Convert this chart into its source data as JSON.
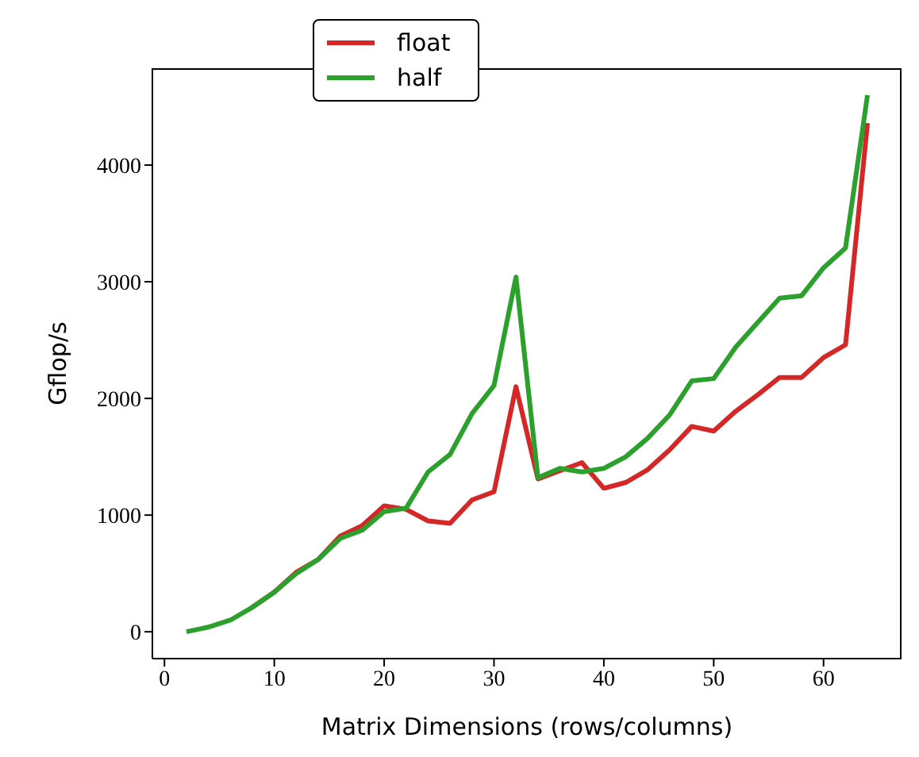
{
  "chart_data": {
    "type": "line",
    "xlabel": "Matrix Dimensions (rows/columns)",
    "ylabel": "Gflop/s",
    "x": [
      2,
      4,
      6,
      8,
      10,
      12,
      14,
      16,
      18,
      20,
      22,
      24,
      26,
      28,
      30,
      32,
      34,
      36,
      38,
      40,
      42,
      44,
      46,
      48,
      50,
      52,
      54,
      56,
      58,
      60,
      62,
      64
    ],
    "series": [
      {
        "name": "float",
        "color": "#d62728",
        "values": [
          null,
          null,
          null,
          210,
          340,
          510,
          620,
          820,
          910,
          1080,
          1050,
          950,
          930,
          1130,
          1200,
          2100,
          1310,
          1380,
          1450,
          1230,
          1280,
          1390,
          1560,
          1760,
          1720,
          1890,
          2030,
          2180,
          2180,
          2350,
          2460,
          4360
        ]
      },
      {
        "name": "half",
        "color": "#2ca02c",
        "values": [
          0,
          40,
          100,
          210,
          340,
          500,
          620,
          800,
          870,
          1030,
          1060,
          1370,
          1520,
          1870,
          2110,
          3040,
          1320,
          1400,
          1370,
          1400,
          1500,
          1660,
          1860,
          2150,
          2170,
          2440,
          2650,
          2860,
          2880,
          3120,
          3290,
          4600
        ]
      }
    ],
    "xlim": [
      -1.1,
      67.1
    ],
    "xticks": [
      0,
      10,
      20,
      30,
      40,
      50,
      60
    ],
    "ylim": [
      -230,
      4830
    ],
    "yticks": [
      0,
      1000,
      2000,
      3000,
      4000
    ],
    "grid": false,
    "legend": "top",
    "marker": "none",
    "line_style": "solid"
  }
}
